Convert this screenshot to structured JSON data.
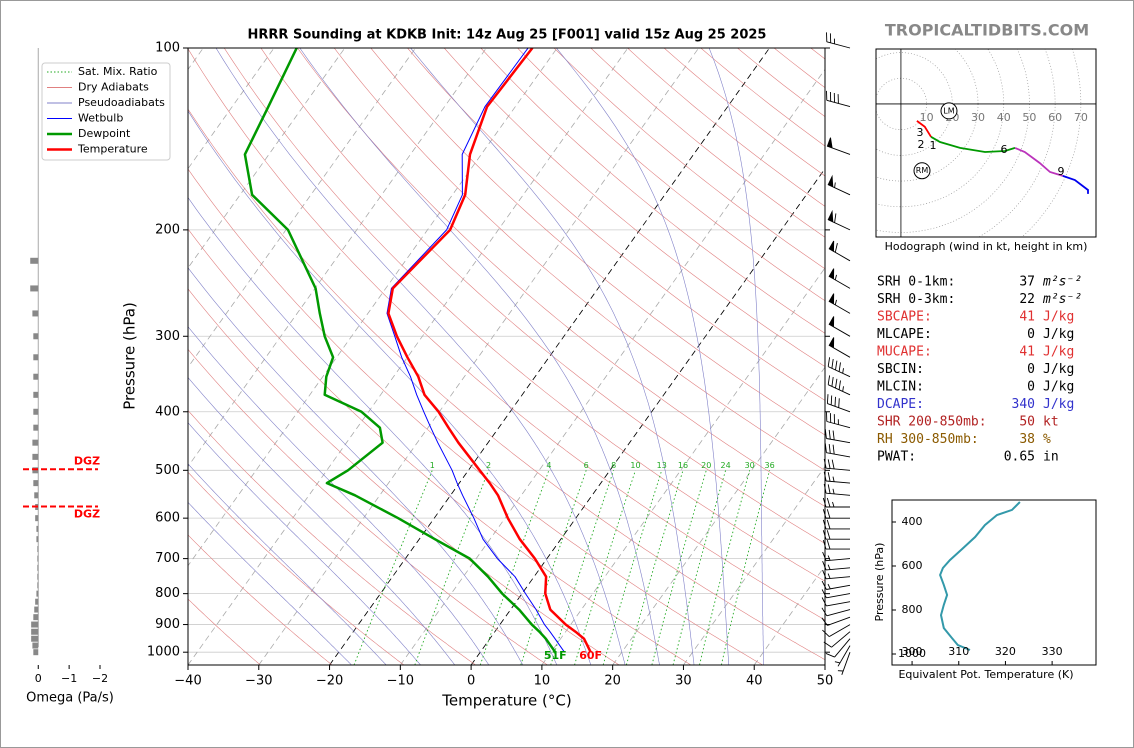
{
  "watermark": "TROPICALTIDBITS.COM",
  "chart_data": [
    {
      "type": "skewt",
      "title": "HRRR Sounding at KDKB Init: 14z Aug 25 [F001] valid 15z Aug 25 2025",
      "xlabel": "Temperature (°C)",
      "ylabel": "Pressure (hPa)",
      "xlim": [
        -40,
        50
      ],
      "ylim": [
        1050,
        100
      ],
      "log_y": true,
      "xticks": [
        {
          "value": -40,
          "label": "−40"
        },
        {
          "value": -30,
          "label": "−30"
        },
        {
          "value": -20,
          "label": "−20"
        },
        {
          "value": -10,
          "label": "−10"
        },
        0,
        10,
        20,
        30,
        40,
        50
      ],
      "yticks": [
        100,
        200,
        300,
        400,
        500,
        600,
        700,
        800,
        900,
        1000
      ],
      "grid": true,
      "pressure": [
        1000,
        950,
        925,
        900,
        850,
        800,
        750,
        700,
        650,
        600,
        550,
        525,
        500,
        450,
        425,
        400,
        375,
        350,
        325,
        300,
        275,
        250,
        200,
        175,
        150,
        125,
        100
      ],
      "series": [
        {
          "name": "Wetbulb",
          "color": "#0000ff",
          "linewidth": 1,
          "values": [
            11.9,
            9.2,
            7.8,
            6.3,
            3.6,
            0.5,
            -2.7,
            -7,
            -11,
            -14.4,
            -18.3,
            -20.3,
            -22.3,
            -27.1,
            -29.6,
            -32.2,
            -34.9,
            -37.6,
            -40.8,
            -43.9,
            -47.3,
            -49.2,
            -47.3,
            -48.6,
            -52.7,
            -54.3,
            -54.1
          ]
        },
        {
          "name": "Dewpoint",
          "color": "#009900",
          "linewidth": 2.5,
          "surface_label": "51F",
          "values": [
            10.6,
            7.9,
            6.3,
            4.5,
            1.2,
            -2.8,
            -6.5,
            -10.9,
            -17.8,
            -25.1,
            -33.5,
            -38.7,
            -37,
            -34.9,
            -36.8,
            -41,
            -47.9,
            -49.5,
            -50.5,
            -53.8,
            -56.8,
            -59.9,
            -69.7,
            -78.3,
            -83.4,
            -84.9,
            -86.8
          ]
        },
        {
          "name": "Temperature",
          "color": "#ff0000",
          "linewidth": 2.5,
          "surface_label": "60F",
          "values": [
            15.6,
            13.3,
            11.4,
            9.3,
            5.6,
            3.3,
            1.7,
            -1.7,
            -5.8,
            -9.6,
            -13.3,
            -15.7,
            -18.4,
            -24.2,
            -27.1,
            -30.1,
            -33.8,
            -36.5,
            -40,
            -43.6,
            -47.1,
            -49,
            -46.8,
            -48.2,
            -51.6,
            -54,
            -53.5
          ]
        }
      ],
      "mixing_ratio": {
        "name": "Sat. Mix. Ratio",
        "color": "#22aa22",
        "top": 500,
        "values": [
          1,
          2,
          4,
          6,
          8,
          10,
          13,
          16,
          20,
          24,
          30,
          36
        ]
      },
      "dry_adiabats": {
        "name": "Dry Adiabats",
        "color": "#e08080",
        "values": [
          230,
          240,
          250,
          260,
          270,
          280,
          290,
          300,
          310,
          320,
          330,
          340,
          350,
          360,
          370,
          380,
          390,
          400,
          410,
          420,
          430,
          440,
          450,
          460,
          470,
          480,
          490,
          500
        ]
      },
      "pseudoadiabats": {
        "name": "Pseudoadiabats",
        "color": "#8080c8",
        "values": [
          -20,
          -15,
          -10,
          -5,
          0,
          5,
          10,
          15,
          20,
          25,
          30,
          35,
          40
        ]
      },
      "isotherms": {
        "color": "#aaaaaa",
        "values": [
          -110,
          -100,
          -90,
          -80,
          -70,
          -60,
          -50,
          -40,
          -30,
          -20,
          -10,
          0,
          10,
          20,
          30,
          40,
          50
        ]
      },
      "highlight_isotherms": {
        "color": "#000000",
        "values": [
          -20,
          0
        ]
      },
      "legend": "upper left",
      "winds": {
        "pressure": [
          1000,
          975,
          950,
          925,
          900,
          875,
          850,
          825,
          800,
          775,
          750,
          725,
          700,
          675,
          650,
          625,
          600,
          575,
          550,
          525,
          500,
          475,
          450,
          425,
          400,
          375,
          350,
          325,
          300,
          275,
          250,
          225,
          200,
          175,
          150,
          125,
          100
        ],
        "speed": [
          5,
          5,
          10,
          10,
          10,
          10,
          10,
          10,
          10,
          15,
          15,
          15,
          15,
          20,
          20,
          20,
          20,
          25,
          25,
          25,
          30,
          30,
          30,
          35,
          40,
          45,
          45,
          50,
          50,
          55,
          55,
          60,
          60,
          55,
          50,
          40,
          25
        ],
        "direction": [
          200,
          210,
          220,
          230,
          240,
          250,
          255,
          260,
          260,
          260,
          265,
          265,
          265,
          270,
          270,
          270,
          270,
          270,
          275,
          275,
          275,
          280,
          280,
          285,
          290,
          295,
          295,
          300,
          300,
          300,
          300,
          300,
          295,
          295,
          290,
          285,
          285
        ]
      }
    },
    {
      "type": "omega",
      "xlabel": "Omega (Pa/s)",
      "xlim": [
        0.3,
        -2
      ],
      "xticks": [
        0,
        {
          "value": -1,
          "label": "−1"
        },
        {
          "value": -2,
          "label": "−2"
        }
      ],
      "ylim": [
        1050,
        100
      ],
      "log_y": true,
      "color": "#888888",
      "pressure": [
        225,
        250,
        275,
        300,
        325,
        350,
        375,
        400,
        425,
        450,
        475,
        500,
        525,
        550,
        575,
        600,
        625,
        650,
        675,
        700,
        725,
        750,
        775,
        800,
        825,
        850,
        875,
        900,
        925,
        950,
        975,
        1000
      ],
      "values": [
        0.26,
        0.26,
        0.19,
        0.16,
        0.16,
        0.16,
        0.16,
        0.16,
        0.16,
        0.19,
        0.19,
        0.19,
        0.16,
        0.13,
        0.1,
        0.1,
        0.06,
        0.06,
        0.03,
        0.03,
        0.03,
        0.03,
        0.03,
        0.06,
        0.1,
        0.13,
        0.16,
        0.23,
        0.23,
        0.23,
        0.19,
        0.16
      ],
      "dgz": {
        "label": "DGZ",
        "color": "#ff0000",
        "pressure": [
          498,
          574
        ]
      }
    },
    {
      "type": "hodograph",
      "caption": "Hodograph (wind in kt, height in km)",
      "xlim": [
        -9.7,
        75.9
      ],
      "ylim": [
        -51.8,
        21.4
      ],
      "rings": [
        10,
        20,
        30,
        40,
        50,
        60,
        70
      ],
      "segments": [
        {
          "color": "#ff0000",
          "u": [
            6.2,
            9.3,
            11.7
          ],
          "v": [
            -6.6,
            -8.9,
            -12.8
          ]
        },
        {
          "color": "#009900",
          "u": [
            11.7,
            15.2,
            23,
            32.7,
            40.5,
            44.4
          ],
          "v": [
            -12.8,
            -14.8,
            -17.1,
            -18.7,
            -18.3,
            -17.1
          ]
        },
        {
          "color": "#bb33bb",
          "u": [
            44.4,
            48.2,
            54,
            58,
            63
          ],
          "v": [
            -17.1,
            -18.7,
            -23,
            -26.5,
            -28
          ]
        },
        {
          "color": "#0000ee",
          "u": [
            63,
            67.7,
            72.8,
            72.8
          ],
          "v": [
            -28,
            -29.6,
            -33.5,
            -35
          ]
        }
      ],
      "height_labels": [
        {
          "label": "1",
          "u": 12.5,
          "v": -16.3
        },
        {
          "label": "2",
          "u": 7.8,
          "v": -16
        },
        {
          "label": "3",
          "u": 7.4,
          "v": -11.3
        },
        {
          "label": "6",
          "u": 40.1,
          "v": -17.9
        },
        {
          "label": "9",
          "u": 62.3,
          "v": -26.5
        }
      ],
      "storm_motion": [
        {
          "label": "LM",
          "u": 18.7,
          "v": -2.7
        },
        {
          "label": "RM",
          "u": 8.2,
          "v": -26
        }
      ]
    },
    {
      "type": "line",
      "xlabel": "Equivalent Pot. Temperature (K)",
      "ylabel": "Pressure (hPa)",
      "xlim": [
        295.7,
        339.4
      ],
      "ylim": [
        1050,
        300
      ],
      "xticks": [
        300,
        310,
        320,
        330
      ],
      "yticks": [
        400,
        600,
        800,
        1000
      ],
      "color": "#3399aa",
      "pressure": [
        982,
        959,
        927,
        882,
        823,
        777,
        732,
        686,
        641,
        609,
        573,
        523,
        468,
        414,
        368,
        345,
        309
      ],
      "values": [
        312.4,
        309.8,
        308.5,
        306.8,
        306.2,
        306.8,
        307.5,
        306.8,
        306,
        306.6,
        308.1,
        310.7,
        313.5,
        315.6,
        318.2,
        321.4,
        323.1
      ]
    }
  ],
  "stats": [
    {
      "label": "SRH 0-1km:",
      "value": 37,
      "unit": "m²s⁻²",
      "color": "#000000"
    },
    {
      "label": "SRH 0-3km:",
      "value": 22,
      "unit": "m²s⁻²",
      "color": "#000000"
    },
    {
      "label": "SBCAPE:",
      "value": 41,
      "unit": "J/kg",
      "color": "#e03030"
    },
    {
      "label": "MLCAPE:",
      "value": 0,
      "unit": "J/kg",
      "color": "#000000"
    },
    {
      "label": "MUCAPE:",
      "value": 41,
      "unit": "J/kg",
      "color": "#e03030"
    },
    {
      "label": "SBCIN:",
      "value": 0,
      "unit": "J/kg",
      "color": "#000000"
    },
    {
      "label": "MLCIN:",
      "value": 0,
      "unit": "J/kg",
      "color": "#000000"
    },
    {
      "label": "DCAPE:",
      "value": 340,
      "unit": "J/kg",
      "color": "#3333cc"
    },
    {
      "label": "SHR 200-850mb:",
      "value": 50,
      "unit": "kt",
      "color": "#b22222"
    },
    {
      "label": "RH 300-850mb:",
      "value": 38,
      "unit": "%",
      "color": "#8b5a00"
    },
    {
      "label": "PWAT:",
      "value": 0.65,
      "unit": "in",
      "color": "#000000"
    }
  ]
}
